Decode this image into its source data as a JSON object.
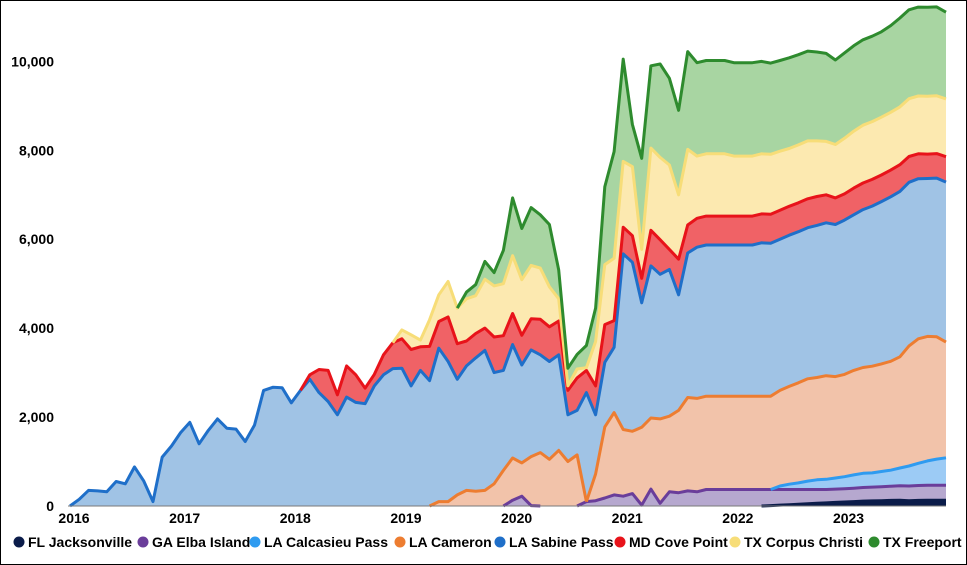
{
  "chart_data": {
    "type": "area",
    "stacked": true,
    "x": [
      2016.0,
      2016.083,
      2016.167,
      2016.25,
      2016.333,
      2016.417,
      2016.5,
      2016.583,
      2016.667,
      2016.75,
      2016.833,
      2016.917,
      2017.0,
      2017.083,
      2017.167,
      2017.25,
      2017.333,
      2017.417,
      2017.5,
      2017.583,
      2017.667,
      2017.75,
      2017.833,
      2017.917,
      2018.0,
      2018.083,
      2018.167,
      2018.25,
      2018.333,
      2018.417,
      2018.5,
      2018.583,
      2018.667,
      2018.75,
      2018.833,
      2018.917,
      2019.0,
      2019.083,
      2019.167,
      2019.25,
      2019.333,
      2019.417,
      2019.5,
      2019.583,
      2019.667,
      2019.75,
      2019.833,
      2019.917,
      2020.0,
      2020.083,
      2020.167,
      2020.25,
      2020.333,
      2020.417,
      2020.5,
      2020.583,
      2020.667,
      2020.75,
      2020.833,
      2020.917,
      2021.0,
      2021.083,
      2021.167,
      2021.25,
      2021.333,
      2021.417,
      2021.5,
      2021.583,
      2021.667,
      2021.75,
      2021.833,
      2021.917,
      2022.0,
      2022.083,
      2022.167,
      2022.25,
      2022.333,
      2022.417,
      2022.5,
      2022.583,
      2022.667,
      2022.75,
      2022.833,
      2022.917,
      2023.0,
      2023.083,
      2023.167,
      2023.25,
      2023.333,
      2023.417,
      2023.5,
      2023.583,
      2023.667,
      2023.75,
      2023.833,
      2023.917
    ],
    "series": [
      {
        "name": "FL Jacksonville",
        "color": "#0b1c4a",
        "line": "#0b1c4a",
        "fill": "#0b1c4a",
        "values": [
          0,
          0,
          0,
          0,
          0,
          0,
          0,
          0,
          0,
          0,
          0,
          0,
          0,
          0,
          0,
          0,
          0,
          0,
          0,
          0,
          0,
          0,
          0,
          0,
          0,
          0,
          0,
          0,
          0,
          0,
          0,
          0,
          0,
          0,
          0,
          0,
          0,
          0,
          0,
          0,
          0,
          0,
          0,
          0,
          0,
          0,
          0,
          0,
          0,
          0,
          0,
          0,
          0,
          0,
          0,
          0,
          0,
          0,
          0,
          0,
          0,
          0,
          0,
          0,
          0,
          0,
          0,
          0,
          0,
          0,
          0,
          0,
          0,
          0,
          0,
          0,
          10,
          20,
          30,
          40,
          50,
          60,
          70,
          80,
          90,
          100,
          110,
          115,
          120,
          125,
          130,
          120,
          125,
          130,
          130,
          130
        ]
      },
      {
        "name": "GA Elba Island",
        "color": "#6a3d9a",
        "line": "#6a3d9a",
        "fill": "#b6a8cf",
        "values": [
          0,
          0,
          0,
          0,
          0,
          0,
          0,
          0,
          0,
          0,
          0,
          0,
          0,
          0,
          0,
          0,
          0,
          0,
          0,
          0,
          0,
          0,
          0,
          0,
          0,
          0,
          0,
          0,
          0,
          0,
          0,
          0,
          0,
          0,
          0,
          0,
          0,
          0,
          0,
          0,
          0,
          0,
          0,
          0,
          0,
          0,
          0,
          0,
          130,
          220,
          10,
          0,
          0,
          0,
          0,
          0,
          100,
          120,
          180,
          250,
          220,
          280,
          20,
          380,
          60,
          320,
          300,
          340,
          320,
          370,
          370,
          370,
          370,
          370,
          370,
          370,
          360,
          350,
          340,
          330,
          320,
          310,
          300,
          300,
          300,
          300,
          305,
          310,
          315,
          320,
          325,
          330,
          335,
          335,
          335,
          335
        ]
      },
      {
        "name": "LA Calcasieu Pass",
        "color": "#2f9bf0",
        "line": "#2f9bf0",
        "fill": "#9ccbf5",
        "values": [
          0,
          0,
          0,
          0,
          0,
          0,
          0,
          0,
          0,
          0,
          0,
          0,
          0,
          0,
          0,
          0,
          0,
          0,
          0,
          0,
          0,
          0,
          0,
          0,
          0,
          0,
          0,
          0,
          0,
          0,
          0,
          0,
          0,
          0,
          0,
          0,
          0,
          0,
          0,
          0,
          0,
          0,
          0,
          0,
          0,
          0,
          0,
          0,
          0,
          0,
          0,
          0,
          0,
          0,
          0,
          0,
          0,
          0,
          0,
          0,
          0,
          0,
          0,
          0,
          0,
          0,
          0,
          0,
          0,
          0,
          0,
          0,
          0,
          0,
          0,
          0,
          0,
          80,
          120,
          150,
          190,
          220,
          230,
          250,
          270,
          300,
          320,
          320,
          340,
          360,
          400,
          450,
          500,
          550,
          590,
          620
        ]
      },
      {
        "name": "LA Cameron",
        "color": "#ed7d31",
        "line": "#ed7d31",
        "fill": "#f2c3aa",
        "values": [
          0,
          0,
          0,
          0,
          0,
          0,
          0,
          0,
          0,
          0,
          0,
          0,
          0,
          0,
          0,
          0,
          0,
          0,
          0,
          0,
          0,
          0,
          0,
          0,
          0,
          0,
          0,
          0,
          0,
          0,
          0,
          0,
          0,
          0,
          0,
          0,
          0,
          0,
          0,
          0,
          100,
          100,
          250,
          350,
          330,
          350,
          500,
          800,
          950,
          750,
          1100,
          1200,
          1050,
          1250,
          1000,
          1150,
          0,
          600,
          1600,
          1850,
          1500,
          1400,
          1750,
          1600,
          1900,
          1700,
          1850,
          2100,
          2100,
          2100,
          2100,
          2100,
          2100,
          2100,
          2100,
          2100,
          2100,
          2150,
          2200,
          2250,
          2300,
          2300,
          2330,
          2280,
          2300,
          2350,
          2380,
          2400,
          2420,
          2450,
          2500,
          2700,
          2800,
          2800,
          2750,
          2600
        ]
      },
      {
        "name": "LA Sabine Pass",
        "color": "#1f6fc9",
        "line": "#1f6fc9",
        "fill": "#a0c3e5",
        "values": [
          0,
          150,
          350,
          340,
          320,
          550,
          500,
          880,
          560,
          100,
          1100,
          1350,
          1650,
          1880,
          1400,
          1700,
          1960,
          1750,
          1730,
          1450,
          1820,
          2600,
          2670,
          2660,
          2320,
          2600,
          2850,
          2550,
          2350,
          2050,
          2450,
          2330,
          2300,
          2700,
          2950,
          3090,
          3100,
          2700,
          3050,
          2820,
          3450,
          3150,
          2600,
          2800,
          3000,
          3150,
          2500,
          2250,
          2550,
          2200,
          2400,
          2200,
          2200,
          2150,
          1050,
          1000,
          2450,
          1330,
          1450,
          1470,
          3950,
          3800,
          2800,
          3420,
          3250,
          3300,
          2600,
          3250,
          3400,
          3400,
          3400,
          3400,
          3400,
          3400,
          3400,
          3450,
          3440,
          3400,
          3400,
          3400,
          3400,
          3420,
          3440,
          3420,
          3470,
          3500,
          3550,
          3600,
          3650,
          3700,
          3720,
          3680,
          3600,
          3550,
          3570,
          3600
        ]
      },
      {
        "name": "MD Cove Point",
        "color": "#e8131a",
        "line": "#e8131a",
        "fill": "#f06266",
        "values": [
          0,
          0,
          0,
          0,
          0,
          0,
          0,
          0,
          0,
          0,
          0,
          0,
          0,
          0,
          0,
          0,
          0,
          0,
          0,
          0,
          0,
          0,
          0,
          0,
          0,
          0,
          100,
          520,
          700,
          450,
          700,
          620,
          350,
          260,
          450,
          580,
          660,
          820,
          530,
          770,
          600,
          1000,
          800,
          560,
          550,
          500,
          800,
          780,
          700,
          670,
          700,
          800,
          780,
          760,
          550,
          730,
          500,
          650,
          850,
          600,
          600,
          600,
          550,
          800,
          780,
          450,
          800,
          630,
          650,
          650,
          650,
          650,
          650,
          650,
          650,
          650,
          650,
          650,
          650,
          650,
          650,
          650,
          630,
          600,
          590,
          600,
          600,
          600,
          600,
          600,
          600,
          580,
          560,
          550,
          550,
          570
        ]
      },
      {
        "name": "TX Corpus Christi",
        "color": "#f7dd78",
        "line": "#f7dd78",
        "fill": "#fce9b0",
        "values": [
          0,
          0,
          0,
          0,
          0,
          0,
          0,
          0,
          0,
          0,
          0,
          0,
          0,
          0,
          0,
          0,
          0,
          0,
          0,
          0,
          0,
          0,
          0,
          0,
          0,
          0,
          0,
          0,
          0,
          0,
          0,
          0,
          0,
          0,
          0,
          0,
          200,
          330,
          150,
          600,
          600,
          800,
          800,
          950,
          850,
          1100,
          1150,
          1170,
          1300,
          1250,
          1200,
          1150,
          900,
          500,
          100,
          200,
          60,
          1000,
          1350,
          1400,
          1480,
          1550,
          650,
          1850,
          1850,
          1900,
          1450,
          1700,
          1400,
          1400,
          1400,
          1400,
          1350,
          1350,
          1350,
          1350,
          1350,
          1330,
          1300,
          1300,
          1300,
          1250,
          1200,
          1200,
          1250,
          1280,
          1300,
          1300,
          1300,
          1300,
          1300,
          1300,
          1300,
          1300,
          1300,
          1300
        ]
      },
      {
        "name": "TX Freeport",
        "color": "#2e8b2e",
        "line": "#2e8b2e",
        "fill": "#a8d5a2",
        "values": [
          0,
          0,
          0,
          0,
          0,
          0,
          0,
          0,
          0,
          0,
          0,
          0,
          0,
          0,
          0,
          0,
          0,
          0,
          0,
          0,
          0,
          0,
          0,
          0,
          0,
          0,
          0,
          0,
          0,
          0,
          0,
          0,
          0,
          0,
          0,
          0,
          0,
          0,
          0,
          0,
          0,
          0,
          0,
          150,
          250,
          400,
          300,
          750,
          1300,
          1150,
          1300,
          1200,
          1400,
          650,
          400,
          330,
          500,
          750,
          1750,
          2400,
          2300,
          950,
          2050,
          1850,
          2100,
          1950,
          1900,
          2200,
          2100,
          2100,
          2100,
          2100,
          2100,
          2100,
          2100,
          2080,
          2050,
          2040,
          2040,
          2030,
          2020,
          2000,
          1980,
          1900,
          1920,
          1920,
          1920,
          1920,
          1920,
          1950,
          2000,
          2000,
          2000,
          2000,
          2000,
          1950
        ]
      }
    ],
    "x_ticks": [
      2016,
      2017,
      2018,
      2019,
      2020,
      2021,
      2022,
      2023
    ],
    "x_tick_labels": [
      "2016",
      "2017",
      "2018",
      "2019",
      "2020",
      "2021",
      "2022",
      "2023"
    ],
    "y_ticks": [
      0,
      2000,
      4000,
      6000,
      8000,
      10000
    ],
    "y_tick_labels": [
      "0",
      "2,000",
      "4,000",
      "6,000",
      "8,000",
      "10,000"
    ],
    "xlim": [
      2016.0,
      2023.917
    ],
    "ylim": [
      0,
      11200
    ],
    "title": "",
    "xlabel": "",
    "ylabel": "",
    "grid": false,
    "legend_position": "bottom"
  }
}
